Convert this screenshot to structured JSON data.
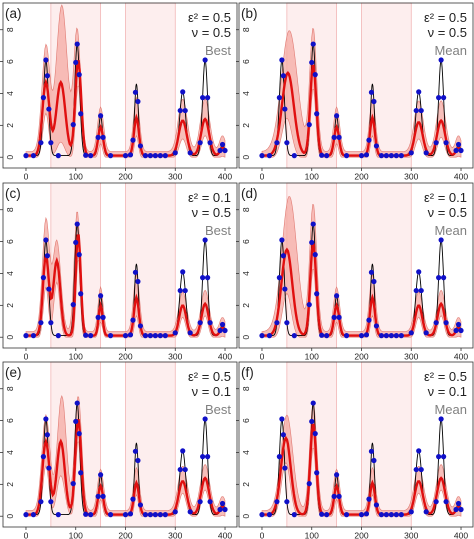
{
  "figure": {
    "panels": [
      {
        "label": "(a)",
        "eps_line": "ε² = 0.5",
        "nu_line": "ν = 0.5",
        "tag": "Best"
      },
      {
        "label": "(b)",
        "eps_line": "ε² = 0.5",
        "nu_line": "ν = 0.5",
        "tag": "Mean"
      },
      {
        "label": "(c)",
        "eps_line": "ε² = 0.1",
        "nu_line": "ν = 0.5",
        "tag": "Best"
      },
      {
        "label": "(d)",
        "eps_line": "ε² = 0.1",
        "nu_line": "ν = 0.5",
        "tag": "Mean"
      },
      {
        "label": "(e)",
        "eps_line": "ε² = 0.5",
        "nu_line": "ν = 0.1",
        "tag": "Best"
      },
      {
        "label": "(f)",
        "eps_line": "ε² = 0.5",
        "nu_line": "ν = 0.1",
        "tag": "Mean"
      }
    ]
  },
  "chart_data": {
    "type": "line",
    "layout": "3x2 small multiples",
    "xlim": [
      -10,
      410
    ],
    "ylim": [
      -0.3,
      9.3
    ],
    "xticks": [
      0,
      100,
      200,
      300,
      400
    ],
    "yticks": [
      0,
      2,
      4,
      6,
      8
    ],
    "shaded_intervals": [
      [
        50,
        150
      ],
      [
        200,
        300
      ]
    ],
    "colors": {
      "truth": "#000000",
      "estimate": "#e01010",
      "band": "#f4a9a3",
      "band_edge": "#e07a72",
      "shade": "#fdeeee",
      "shade_edge": "#f2b6b6",
      "observation": "#1010c8"
    },
    "truth_peaks": [
      {
        "x": 40,
        "height": 6.0,
        "width": 5
      },
      {
        "x": 103,
        "height": 7.0,
        "width": 5
      },
      {
        "x": 150,
        "height": 2.5,
        "width": 4
      },
      {
        "x": 222,
        "height": 4.5,
        "width": 4
      },
      {
        "x": 315,
        "height": 4.0,
        "width": 6
      },
      {
        "x": 360,
        "height": 6.0,
        "width": 5
      },
      {
        "x": 395,
        "height": 0.7,
        "width": 4
      }
    ],
    "truth_baseline": 0.1,
    "observation_x": [
      0,
      15,
      30,
      35,
      40,
      43,
      46,
      50,
      65,
      95,
      100,
      103,
      107,
      110,
      120,
      130,
      145,
      150,
      155,
      170,
      200,
      210,
      215,
      220,
      225,
      230,
      240,
      250,
      260,
      270,
      280,
      300,
      310,
      315,
      320,
      330,
      350,
      355,
      360,
      365,
      370,
      390,
      395,
      400
    ],
    "series": [
      {
        "panel": "(a)",
        "estimate_peaks": [
          [
            40,
            4.6,
            7
          ],
          [
            70,
            4.6,
            9
          ],
          [
            105,
            6.0,
            6
          ],
          [
            150,
            1.8,
            5
          ],
          [
            222,
            2.4,
            5
          ],
          [
            315,
            2.2,
            8
          ],
          [
            360,
            2.3,
            8
          ],
          [
            395,
            0.5,
            5
          ]
        ],
        "band_peaks": [
          [
            40,
            6.6,
            8
          ],
          [
            72,
            9.2,
            11
          ],
          [
            103,
            7.6,
            7
          ],
          [
            150,
            2.8,
            6
          ],
          [
            222,
            3.4,
            6
          ],
          [
            315,
            3.3,
            9
          ],
          [
            360,
            3.3,
            9
          ],
          [
            395,
            1.0,
            6
          ]
        ],
        "lower_peaks": [
          [
            40,
            2.8,
            6
          ],
          [
            70,
            1.0,
            8
          ],
          [
            105,
            4.6,
            5
          ],
          [
            150,
            0.9,
            4
          ],
          [
            222,
            1.4,
            4
          ],
          [
            315,
            1.2,
            7
          ],
          [
            360,
            1.4,
            7
          ],
          [
            395,
            0.1,
            4
          ]
        ]
      },
      {
        "panel": "(b)",
        "estimate_peaks": [
          [
            52,
            5.2,
            12
          ],
          [
            103,
            5.7,
            6
          ],
          [
            150,
            1.8,
            5
          ],
          [
            222,
            2.4,
            5
          ],
          [
            315,
            2.1,
            8
          ],
          [
            360,
            2.2,
            8
          ],
          [
            395,
            0.5,
            5
          ]
        ],
        "band_peaks": [
          [
            55,
            7.6,
            16
          ],
          [
            103,
            7.7,
            7
          ],
          [
            150,
            2.8,
            6
          ],
          [
            222,
            3.3,
            6
          ],
          [
            315,
            3.2,
            9
          ],
          [
            360,
            3.2,
            9
          ],
          [
            395,
            1.0,
            6
          ]
        ],
        "lower_peaks": [
          [
            50,
            2.5,
            10
          ],
          [
            103,
            4.4,
            5
          ],
          [
            150,
            0.9,
            4
          ],
          [
            222,
            1.4,
            4
          ],
          [
            315,
            1.2,
            7
          ],
          [
            360,
            1.3,
            7
          ],
          [
            395,
            0.1,
            4
          ]
        ]
      },
      {
        "panel": "(c)",
        "estimate_peaks": [
          [
            40,
            5.0,
            6
          ],
          [
            62,
            4.7,
            7
          ],
          [
            105,
            6.4,
            5
          ],
          [
            150,
            1.9,
            4
          ],
          [
            222,
            2.4,
            5
          ],
          [
            315,
            1.9,
            7
          ],
          [
            360,
            2.0,
            7
          ],
          [
            395,
            0.5,
            5
          ]
        ],
        "band_peaks": [
          [
            40,
            7.0,
            7
          ],
          [
            62,
            5.7,
            8
          ],
          [
            103,
            7.6,
            6
          ],
          [
            150,
            2.8,
            5
          ],
          [
            222,
            3.6,
            6
          ],
          [
            315,
            2.5,
            8
          ],
          [
            360,
            2.6,
            8
          ],
          [
            395,
            0.9,
            6
          ]
        ],
        "lower_peaks": [
          [
            40,
            3.2,
            5
          ],
          [
            62,
            3.5,
            6
          ],
          [
            105,
            5.0,
            4
          ],
          [
            150,
            1.0,
            4
          ],
          [
            222,
            1.4,
            4
          ],
          [
            315,
            1.3,
            6
          ],
          [
            360,
            1.4,
            6
          ],
          [
            395,
            0.1,
            4
          ]
        ]
      },
      {
        "panel": "(d)",
        "estimate_peaks": [
          [
            50,
            5.4,
            11
          ],
          [
            103,
            5.8,
            6
          ],
          [
            150,
            1.9,
            5
          ],
          [
            222,
            2.4,
            5
          ],
          [
            315,
            1.9,
            7
          ],
          [
            360,
            2.0,
            7
          ],
          [
            395,
            0.5,
            5
          ]
        ],
        "band_peaks": [
          [
            55,
            8.5,
            15
          ],
          [
            103,
            8.0,
            7
          ],
          [
            150,
            2.8,
            6
          ],
          [
            222,
            3.6,
            6
          ],
          [
            315,
            2.5,
            8
          ],
          [
            360,
            2.6,
            8
          ],
          [
            395,
            0.9,
            6
          ]
        ],
        "lower_peaks": [
          [
            50,
            2.8,
            9
          ],
          [
            103,
            4.4,
            5
          ],
          [
            150,
            1.0,
            4
          ],
          [
            222,
            1.4,
            4
          ],
          [
            315,
            1.3,
            6
          ],
          [
            360,
            1.4,
            6
          ],
          [
            395,
            0.1,
            4
          ]
        ]
      },
      {
        "panel": "(e)",
        "estimate_peaks": [
          [
            40,
            4.6,
            7
          ],
          [
            70,
            4.6,
            8
          ],
          [
            105,
            6.0,
            6
          ],
          [
            150,
            1.8,
            5
          ],
          [
            222,
            2.0,
            5
          ],
          [
            315,
            2.1,
            8
          ],
          [
            360,
            2.3,
            8
          ],
          [
            395,
            0.5,
            5
          ]
        ],
        "band_peaks": [
          [
            40,
            6.0,
            8
          ],
          [
            72,
            7.2,
            9
          ],
          [
            105,
            7.2,
            7
          ],
          [
            150,
            2.6,
            6
          ],
          [
            222,
            2.7,
            6
          ],
          [
            315,
            2.8,
            9
          ],
          [
            360,
            2.9,
            9
          ],
          [
            395,
            0.9,
            6
          ]
        ],
        "lower_peaks": [
          [
            40,
            3.2,
            6
          ],
          [
            70,
            2.6,
            8
          ],
          [
            105,
            4.8,
            5
          ],
          [
            150,
            1.1,
            4
          ],
          [
            222,
            1.4,
            4
          ],
          [
            315,
            1.5,
            7
          ],
          [
            360,
            1.7,
            7
          ],
          [
            395,
            0.1,
            4
          ]
        ]
      },
      {
        "panel": "(f)",
        "estimate_peaks": [
          [
            48,
            4.8,
            10
          ],
          [
            103,
            5.7,
            6
          ],
          [
            150,
            1.8,
            5
          ],
          [
            222,
            2.0,
            5
          ],
          [
            315,
            2.1,
            8
          ],
          [
            360,
            2.3,
            8
          ],
          [
            395,
            0.5,
            5
          ]
        ],
        "band_peaks": [
          [
            50,
            6.0,
            12
          ],
          [
            103,
            6.8,
            7
          ],
          [
            150,
            2.6,
            6
          ],
          [
            222,
            2.7,
            6
          ],
          [
            315,
            2.8,
            9
          ],
          [
            360,
            2.9,
            9
          ],
          [
            395,
            0.9,
            6
          ]
        ],
        "lower_peaks": [
          [
            48,
            3.4,
            9
          ],
          [
            103,
            4.4,
            5
          ],
          [
            150,
            1.1,
            4
          ],
          [
            222,
            1.4,
            4
          ],
          [
            315,
            1.5,
            7
          ],
          [
            360,
            1.7,
            7
          ],
          [
            395,
            0.1,
            4
          ]
        ]
      }
    ]
  }
}
